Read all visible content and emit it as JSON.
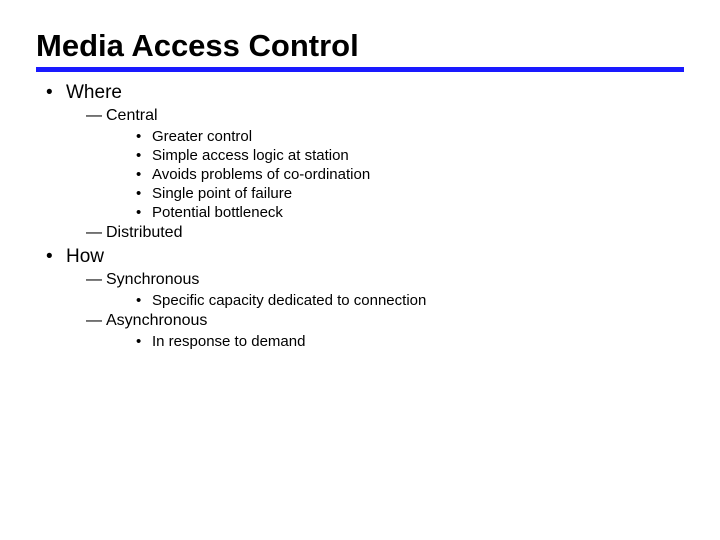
{
  "title": "Media Access Control",
  "rule_color": "#1a1aff",
  "background_color": "#ffffff",
  "text_color": "#000000",
  "title_fontsize": 31,
  "title_fontweight": 900,
  "level1_fontsize": 19,
  "level2_fontsize": 16,
  "level3_fontsize": 15,
  "outline": {
    "where": {
      "label": "Where",
      "central": {
        "label": "Central",
        "items": [
          "Greater control",
          "Simple access logic at station",
          "Avoids problems of co-ordination",
          "Single point of failure",
          "Potential bottleneck"
        ]
      },
      "distributed": {
        "label": "Distributed"
      }
    },
    "how": {
      "label": "How",
      "synchronous": {
        "label": "Synchronous",
        "items": [
          "Specific capacity dedicated to connection"
        ]
      },
      "asynchronous": {
        "label": "Asynchronous",
        "items": [
          "In response to demand"
        ]
      }
    }
  }
}
